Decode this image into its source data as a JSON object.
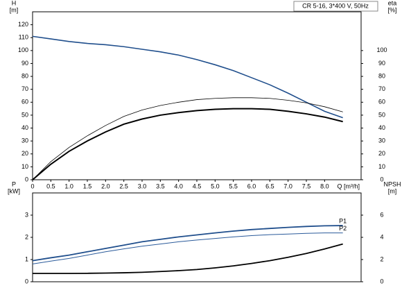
{
  "chart_data": [
    {
      "type": "line",
      "title": "CR 5-16, 3*400 V, 50Hz",
      "y_label": "H",
      "y_unit": "[m]",
      "y2_label": "eta",
      "y2_unit": "[%]",
      "x_label": "Q [m³/h]",
      "xlim": [
        0,
        9
      ],
      "xticks": [
        0,
        0.5,
        {
          "value": 1,
          "label": "1.0"
        },
        1.5,
        {
          "value": 2,
          "label": "2.0"
        },
        2.5,
        {
          "value": 3,
          "label": "3.0"
        },
        3.5,
        {
          "value": 4,
          "label": "4.0"
        },
        4.5,
        {
          "value": 5,
          "label": "5.0"
        },
        5.5,
        {
          "value": 6,
          "label": "6.0"
        },
        6.5,
        {
          "value": 7,
          "label": "7.0"
        },
        7.5,
        {
          "value": 8,
          "label": "8.0"
        }
      ],
      "ylim": [
        0,
        130
      ],
      "yticks": [
        0,
        10,
        20,
        30,
        40,
        50,
        60,
        70,
        80,
        90,
        100,
        110,
        120
      ],
      "y2lim": [
        0,
        130
      ],
      "y2ticks": [
        0,
        10,
        20,
        30,
        40,
        50,
        60,
        70,
        80,
        90,
        100
      ],
      "x": [
        0,
        0.5,
        1,
        1.5,
        2,
        2.5,
        3,
        3.5,
        4,
        4.5,
        5,
        5.5,
        6,
        6.5,
        7,
        7.5,
        8,
        8.5
      ],
      "series": [
        {
          "color": "#1f4e8c",
          "line_width": 1.6,
          "values": [
            111,
            109,
            107,
            105.5,
            104.5,
            103,
            101,
            99,
            96.5,
            93,
            89,
            84.5,
            79,
            73.5,
            67,
            60,
            53,
            48
          ]
        },
        {
          "color": "#000000",
          "line_width": 0.8,
          "axis": "y2",
          "values": [
            0,
            14,
            25,
            34,
            42,
            49,
            54,
            57.5,
            60,
            62,
            63,
            63.5,
            63.5,
            63,
            61.5,
            59.5,
            56.5,
            52.5
          ]
        },
        {
          "color": "#000000",
          "line_width": 2,
          "axis": "y2",
          "values": [
            0,
            12,
            22,
            30,
            37,
            43,
            47,
            50,
            52,
            53.5,
            54.5,
            55,
            55,
            54.5,
            53,
            51,
            48.5,
            45
          ]
        }
      ]
    },
    {
      "type": "line",
      "y_label": "P",
      "y_unit": "[kW]",
      "y2_label": "NPSH",
      "y2_unit": "[m]",
      "xlim": [
        0,
        9
      ],
      "ylim": [
        0,
        4
      ],
      "yticks": [
        0,
        1,
        2,
        3
      ],
      "y2lim": [
        0,
        8
      ],
      "y2ticks": [
        0,
        2,
        4,
        6
      ],
      "x": [
        0,
        0.5,
        1,
        1.5,
        2,
        2.5,
        3,
        3.5,
        4,
        4.5,
        5,
        5.5,
        6,
        6.5,
        7,
        7.5,
        8,
        8.5
      ],
      "series": [
        {
          "name": "P1",
          "color": "#1f4e8c",
          "line_width": 1.8,
          "values": [
            0.95,
            1.08,
            1.2,
            1.35,
            1.5,
            1.65,
            1.8,
            1.91,
            2.02,
            2.11,
            2.2,
            2.28,
            2.35,
            2.4,
            2.45,
            2.49,
            2.52,
            2.53
          ]
        },
        {
          "name": "P2",
          "color": "#2a5a9a",
          "line_width": 1,
          "values": [
            0.8,
            0.93,
            1.05,
            1.2,
            1.35,
            1.48,
            1.6,
            1.7,
            1.8,
            1.88,
            1.95,
            2.02,
            2.08,
            2.12,
            2.15,
            2.18,
            2.2,
            2.2
          ]
        },
        {
          "color": "#000000",
          "line_width": 1.8,
          "axis": "y2",
          "values": [
            0.75,
            0.75,
            0.75,
            0.76,
            0.78,
            0.81,
            0.85,
            0.92,
            1.0,
            1.1,
            1.25,
            1.43,
            1.65,
            1.9,
            2.2,
            2.55,
            2.95,
            3.4
          ]
        }
      ]
    }
  ]
}
